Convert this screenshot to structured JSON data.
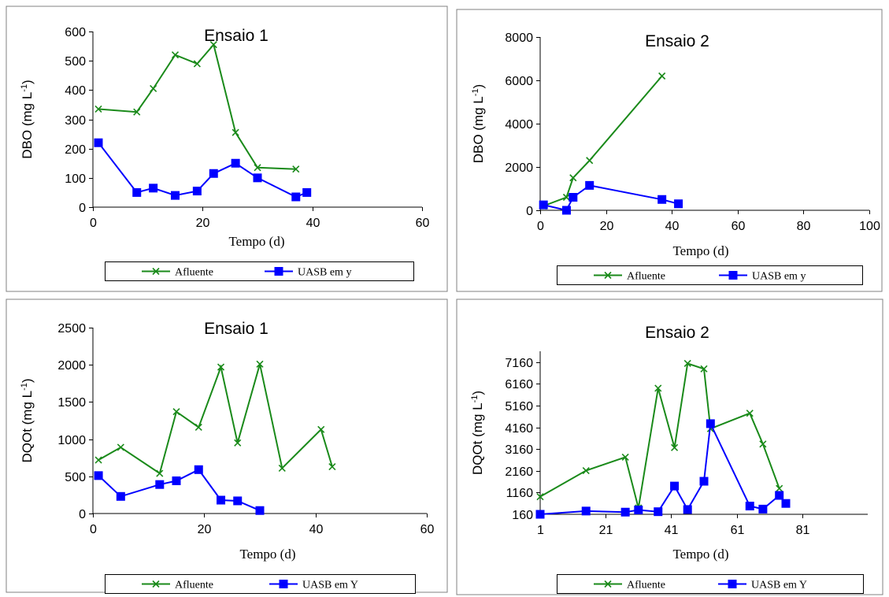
{
  "colors": {
    "afluente": "#1a8a1a",
    "uasb": "#0000ff"
  },
  "chart_data": [
    {
      "type": "line",
      "title": "Ensaio 1",
      "ylabel": "DBO (mg L",
      "ylabel_sup": "-1",
      "ylabel_end": ")",
      "xlabel": "Tempo (d)",
      "xlim": [
        0,
        60
      ],
      "ylim": [
        0,
        600
      ],
      "xticks": [
        0,
        20,
        40,
        60
      ],
      "yticks": [
        0,
        100,
        200,
        300,
        400,
        500,
        600
      ],
      "grid": false,
      "legend": "bottom",
      "series": [
        {
          "name": "Afluente",
          "marker": "x",
          "x": [
            1,
            8,
            11,
            15,
            19,
            22,
            26,
            30,
            37
          ],
          "y": [
            335,
            325,
            405,
            520,
            490,
            555,
            255,
            135,
            130
          ]
        },
        {
          "name": "UASB em y",
          "marker": "square",
          "x": [
            1,
            8,
            11,
            15,
            19,
            22,
            26,
            30,
            37,
            39
          ],
          "y": [
            220,
            50,
            65,
            40,
            55,
            115,
            150,
            100,
            35,
            50
          ]
        }
      ]
    },
    {
      "type": "line",
      "title": "Ensaio 2",
      "ylabel": "DBO (mg L",
      "ylabel_sup": "-1",
      "ylabel_end": ")",
      "xlabel": "Tempo (d)",
      "xlim": [
        0,
        100
      ],
      "ylim": [
        0,
        8000
      ],
      "xticks": [
        0,
        20,
        40,
        60,
        80,
        100
      ],
      "yticks": [
        0,
        2000,
        4000,
        6000,
        8000
      ],
      "grid": false,
      "legend": "bottom",
      "series": [
        {
          "name": "Afluente",
          "marker": "x",
          "x": [
            1,
            8,
            10,
            15,
            37
          ],
          "y": [
            200,
            600,
            1500,
            2300,
            6200
          ]
        },
        {
          "name": "UASB em y",
          "marker": "square",
          "x": [
            1,
            8,
            10,
            15,
            37,
            42
          ],
          "y": [
            250,
            0,
            600,
            1150,
            500,
            300
          ]
        }
      ]
    },
    {
      "type": "line",
      "title": "Ensaio 1",
      "ylabel": "DQOt (mg L",
      "ylabel_sup": "-1",
      "ylabel_end": ")",
      "xlabel": "Tempo (d)",
      "xlim": [
        0,
        60
      ],
      "ylim": [
        0,
        2500
      ],
      "xticks": [
        0,
        20,
        40,
        60
      ],
      "yticks": [
        0,
        500,
        1000,
        1500,
        2000,
        2500
      ],
      "grid": false,
      "legend": "bottom",
      "series": [
        {
          "name": "Afluente",
          "marker": "x",
          "x": [
            1,
            5,
            12,
            15,
            19,
            23,
            26,
            30,
            34,
            41,
            43
          ],
          "y": [
            720,
            890,
            540,
            1370,
            1160,
            1970,
            950,
            2010,
            610,
            1130,
            630
          ]
        },
        {
          "name": "UASB em Y",
          "marker": "square",
          "x": [
            1,
            5,
            12,
            15,
            19,
            23,
            26,
            30
          ],
          "y": [
            510,
            230,
            390,
            440,
            590,
            180,
            170,
            40
          ]
        }
      ]
    },
    {
      "type": "line",
      "title": "Ensaio 2",
      "ylabel": "DQOt (mg L",
      "ylabel_sup": "-1",
      "ylabel_end": ")",
      "xlabel": "Tempo (d)",
      "xlim": [
        1,
        101
      ],
      "ylim": [
        160,
        7660
      ],
      "xticks": [
        1,
        21,
        41,
        61,
        81
      ],
      "yticks": [
        160,
        1160,
        2160,
        3160,
        4160,
        5160,
        6160,
        7160
      ],
      "grid": false,
      "legend": "bottom",
      "series": [
        {
          "name": "Afluente",
          "marker": "x",
          "x": [
            1,
            15,
            27,
            31,
            37,
            42,
            46,
            51,
            53,
            65,
            69,
            74
          ],
          "y": [
            970,
            2170,
            2790,
            450,
            5960,
            3230,
            7100,
            6850,
            4100,
            4810,
            3390,
            1350
          ]
        },
        {
          "name": "UASB em Y",
          "marker": "square",
          "x": [
            1,
            15,
            27,
            31,
            37,
            42,
            46,
            51,
            53,
            65,
            69,
            74,
            76
          ],
          "y": [
            160,
            310,
            260,
            360,
            280,
            1460,
            380,
            1680,
            4330,
            540,
            400,
            1030,
            660
          ]
        }
      ]
    }
  ]
}
